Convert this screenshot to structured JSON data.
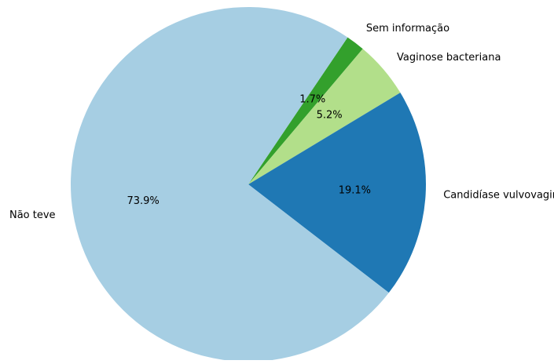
{
  "chart_data": {
    "type": "pie",
    "title": "",
    "slices": [
      {
        "label": "Sem informação",
        "value": 1.7,
        "pct_label": "1.7%",
        "color": "#33a02c"
      },
      {
        "label": "Vaginose bacteriana",
        "value": 5.2,
        "pct_label": "5.2%",
        "color": "#b2df8a"
      },
      {
        "label": "Candidíase vulvovaginal",
        "value": 19.1,
        "pct_label": "19.1%",
        "color": "#1f78b4"
      },
      {
        "label": "Não teve",
        "value": 73.9,
        "pct_label": "73.9%",
        "color": "#a6cee3"
      }
    ],
    "start_angle_deg": 56,
    "direction": "clockwise",
    "legend": "none"
  }
}
